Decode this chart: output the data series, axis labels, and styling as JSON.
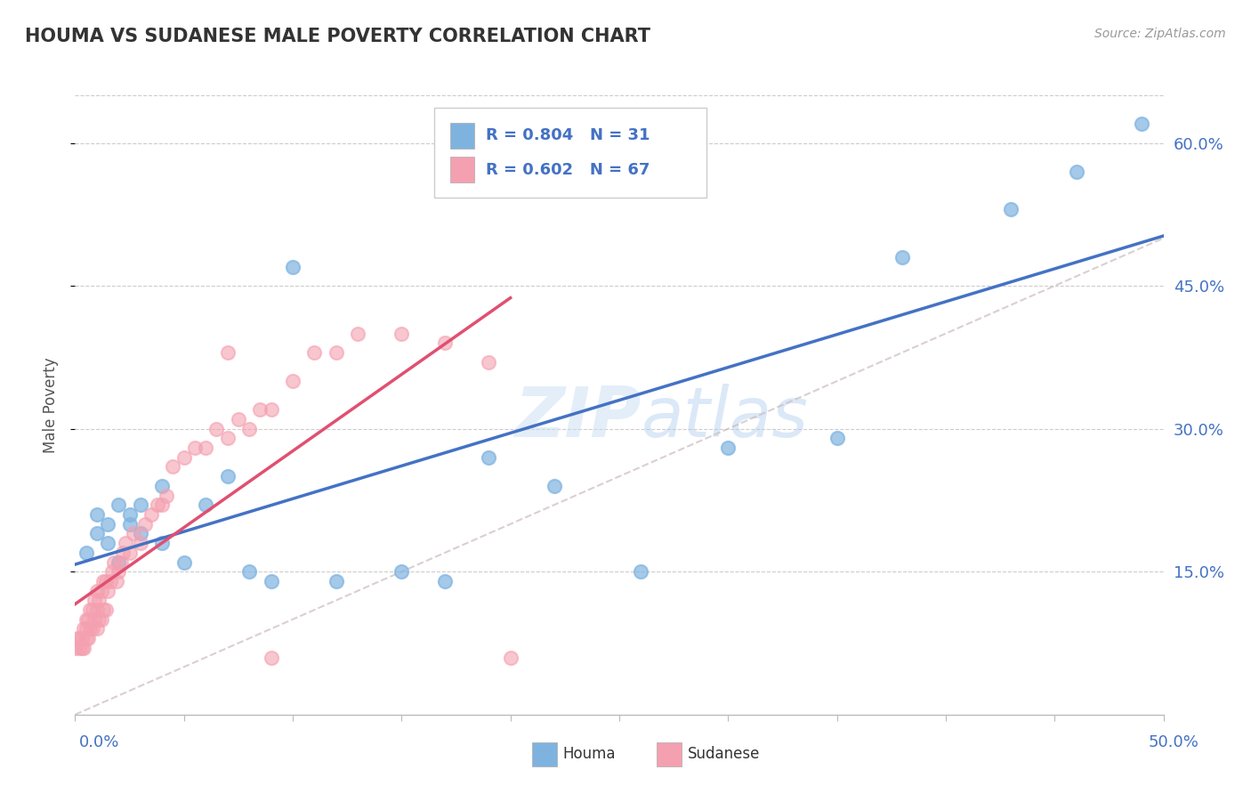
{
  "title": "HOUMA VS SUDANESE MALE POVERTY CORRELATION CHART",
  "source": "Source: ZipAtlas.com",
  "ylabel": "Male Poverty",
  "legend_label_1": "Houma",
  "legend_label_2": "Sudanese",
  "legend_r1": "R = 0.804",
  "legend_n1": "N = 31",
  "legend_r2": "R = 0.602",
  "legend_n2": "N = 67",
  "xlim": [
    0.0,
    0.5
  ],
  "ylim": [
    0.0,
    0.65
  ],
  "yticks": [
    0.15,
    0.3,
    0.45,
    0.6
  ],
  "ytick_labels": [
    "15.0%",
    "30.0%",
    "45.0%",
    "60.0%"
  ],
  "xtick_labels": [
    "0.0%",
    "50.0%"
  ],
  "color_houma_dot": "#7eb3e0",
  "color_houma_line": "#4472c4",
  "color_sudanese_dot": "#f4a0b0",
  "color_sudanese_line": "#e05070",
  "color_ref_line": "#ccbbbb",
  "background": "#ffffff",
  "houma_x": [
    0.005,
    0.01,
    0.01,
    0.015,
    0.015,
    0.02,
    0.02,
    0.025,
    0.025,
    0.03,
    0.03,
    0.04,
    0.04,
    0.05,
    0.06,
    0.07,
    0.08,
    0.09,
    0.1,
    0.12,
    0.15,
    0.17,
    0.19,
    0.22,
    0.26,
    0.3,
    0.35,
    0.38,
    0.43,
    0.46,
    0.49
  ],
  "houma_y": [
    0.17,
    0.19,
    0.21,
    0.18,
    0.2,
    0.16,
    0.22,
    0.2,
    0.21,
    0.19,
    0.22,
    0.24,
    0.18,
    0.16,
    0.22,
    0.25,
    0.15,
    0.14,
    0.47,
    0.14,
    0.15,
    0.14,
    0.27,
    0.24,
    0.15,
    0.28,
    0.29,
    0.48,
    0.53,
    0.57,
    0.62
  ],
  "sudanese_x": [
    0.0,
    0.001,
    0.002,
    0.002,
    0.003,
    0.003,
    0.004,
    0.004,
    0.005,
    0.005,
    0.005,
    0.006,
    0.006,
    0.007,
    0.007,
    0.008,
    0.008,
    0.009,
    0.009,
    0.01,
    0.01,
    0.01,
    0.011,
    0.011,
    0.012,
    0.012,
    0.013,
    0.013,
    0.014,
    0.014,
    0.015,
    0.016,
    0.017,
    0.018,
    0.019,
    0.02,
    0.021,
    0.022,
    0.023,
    0.025,
    0.027,
    0.03,
    0.032,
    0.035,
    0.038,
    0.04,
    0.042,
    0.045,
    0.05,
    0.055,
    0.06,
    0.065,
    0.07,
    0.075,
    0.08,
    0.085,
    0.09,
    0.1,
    0.11,
    0.12,
    0.13,
    0.15,
    0.17,
    0.19,
    0.2,
    0.07,
    0.09
  ],
  "sudanese_y": [
    0.07,
    0.08,
    0.07,
    0.08,
    0.07,
    0.08,
    0.07,
    0.09,
    0.08,
    0.09,
    0.1,
    0.08,
    0.1,
    0.09,
    0.11,
    0.09,
    0.11,
    0.1,
    0.12,
    0.09,
    0.11,
    0.13,
    0.1,
    0.12,
    0.1,
    0.13,
    0.11,
    0.14,
    0.11,
    0.14,
    0.13,
    0.14,
    0.15,
    0.16,
    0.14,
    0.15,
    0.16,
    0.17,
    0.18,
    0.17,
    0.19,
    0.18,
    0.2,
    0.21,
    0.22,
    0.22,
    0.23,
    0.26,
    0.27,
    0.28,
    0.28,
    0.3,
    0.29,
    0.31,
    0.3,
    0.32,
    0.32,
    0.35,
    0.38,
    0.38,
    0.4,
    0.4,
    0.39,
    0.37,
    0.06,
    0.38,
    0.06
  ]
}
